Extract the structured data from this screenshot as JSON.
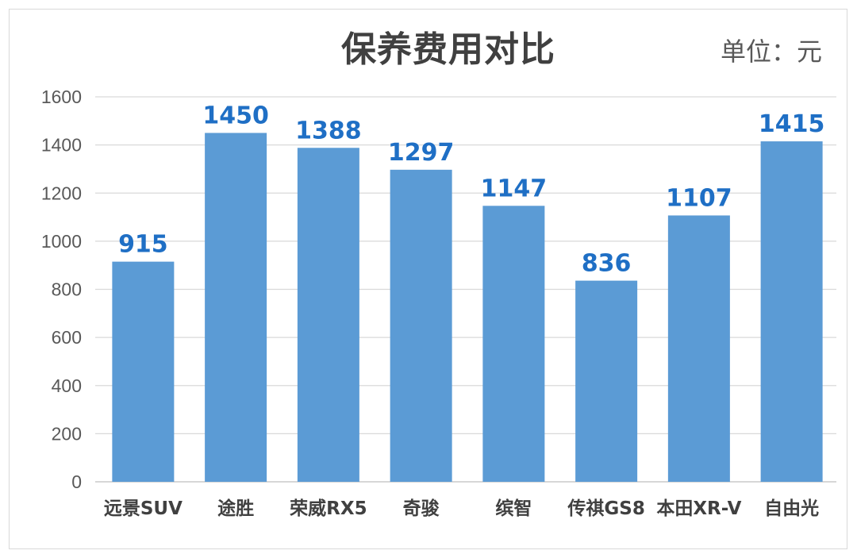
{
  "chart_data": {
    "type": "bar",
    "title": "保养费用对比",
    "unit_label": "单位：元",
    "categories": [
      "远景SUV",
      "途胜",
      "荣威RX5",
      "奇骏",
      "缤智",
      "传祺GS8",
      "本田XR-V",
      "自由光"
    ],
    "values": [
      915,
      1450,
      1388,
      1297,
      1147,
      836,
      1107,
      1415
    ],
    "ylim": [
      0,
      1600
    ],
    "yticks": [
      "0",
      "200",
      "400",
      "600",
      "800",
      "1000",
      "1200",
      "1400",
      "1600"
    ],
    "grid": true,
    "legend": "none",
    "bar_color": "#5b9bd5",
    "data_label_color": "#1f6fc5"
  }
}
